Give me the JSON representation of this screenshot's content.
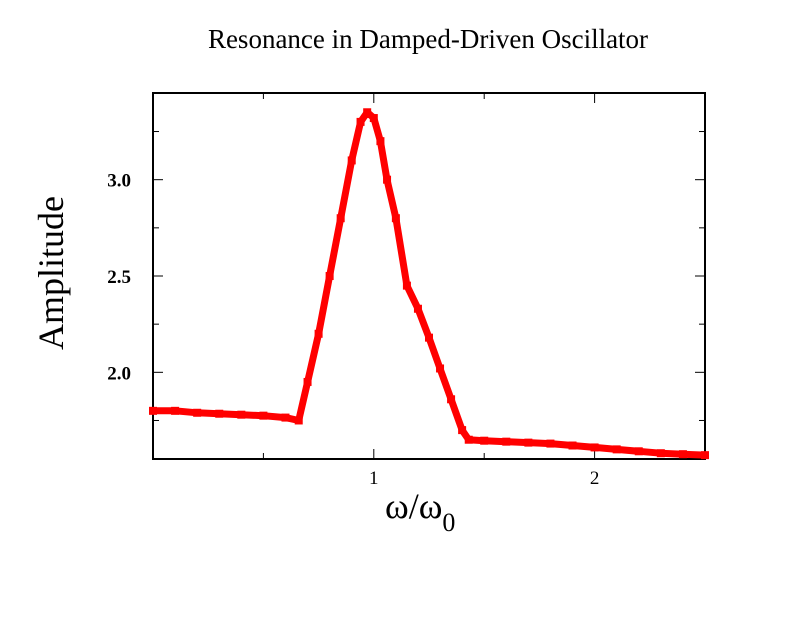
{
  "chart_data": {
    "type": "scatter",
    "title": "Resonance in Damped-Driven Oscillator",
    "xlabel": {
      "main": "ω/ω",
      "subscript": "0"
    },
    "ylabel": "Amplitude",
    "xlim": [
      0.0,
      2.5
    ],
    "ylim": [
      1.55,
      3.45
    ],
    "x_ticks": [
      1,
      2
    ],
    "x_tick_labels": [
      "1",
      "2"
    ],
    "x_minor_ticks": [
      0.5,
      1.5
    ],
    "y_ticks": [
      2.0,
      2.5,
      3.0
    ],
    "y_tick_labels": [
      "2.0",
      "2.5",
      "3.0"
    ],
    "y_minor_ticks": [
      1.75,
      2.25,
      2.75,
      3.25
    ],
    "grid": false,
    "marker_color": "#ff0000",
    "series": [
      {
        "color": "#ff0000",
        "x": [
          0.0,
          0.1,
          0.2,
          0.3,
          0.4,
          0.5,
          0.6,
          0.66,
          0.7,
          0.75,
          0.8,
          0.85,
          0.9,
          0.94,
          0.97,
          1.0,
          1.03,
          1.06,
          1.1,
          1.15,
          1.2,
          1.25,
          1.3,
          1.35,
          1.4,
          1.43,
          1.5,
          1.6,
          1.7,
          1.8,
          1.9,
          2.0,
          2.1,
          2.2,
          2.3,
          2.4,
          2.5
        ],
        "y": [
          1.8,
          1.8,
          1.79,
          1.785,
          1.78,
          1.775,
          1.765,
          1.75,
          1.95,
          2.2,
          2.5,
          2.8,
          3.1,
          3.3,
          3.35,
          3.32,
          3.2,
          3.0,
          2.8,
          2.45,
          2.33,
          2.18,
          2.02,
          1.86,
          1.7,
          1.65,
          1.645,
          1.64,
          1.635,
          1.63,
          1.62,
          1.61,
          1.6,
          1.59,
          1.58,
          1.575,
          1.57
        ]
      }
    ]
  }
}
